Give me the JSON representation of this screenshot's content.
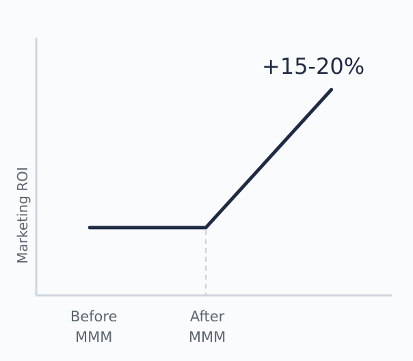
{
  "chart_data": {
    "type": "line",
    "title": "",
    "xlabel": "",
    "ylabel": "Marketing ROI",
    "categories": [
      "Before MMM",
      "After MMM"
    ],
    "x_tick_labels": [
      [
        "Before",
        "MMM"
      ],
      [
        "After",
        "MMM"
      ]
    ],
    "series": [
      {
        "points": [
          {
            "x": 0,
            "y": 1.0
          },
          {
            "x": 1,
            "y": 1.0
          },
          {
            "x": 2.08,
            "y": 1.175
          }
        ]
      }
    ],
    "xlim": [
      -0.46,
      2.6
    ],
    "ylim": [
      0.914,
      1.241
    ],
    "annotation": "+15-20%",
    "marker_line_at": "After MMM",
    "grid": false,
    "colors": {
      "line": "#1f2a44",
      "axis": "#cfd6e0",
      "text": "#5c6470",
      "dashed": "#c5d0dc"
    }
  }
}
